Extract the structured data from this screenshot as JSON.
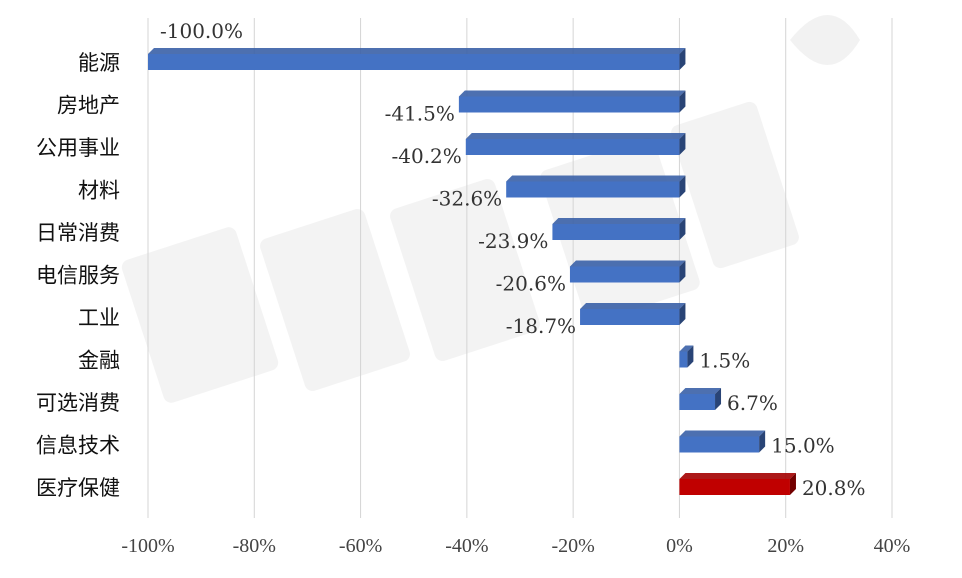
{
  "chart_data": {
    "type": "bar",
    "orientation": "horizontal",
    "title": "",
    "xlabel": "",
    "ylabel": "",
    "categories": [
      "能源",
      "房地产",
      "公用事业",
      "材料",
      "日常消费",
      "电信服务",
      "工业",
      "金融",
      "可选消费",
      "信息技术",
      "医疗保健"
    ],
    "values": [
      -100.0,
      -41.5,
      -40.2,
      -32.6,
      -23.9,
      -20.6,
      -18.7,
      1.5,
      6.7,
      15.0,
      20.8
    ],
    "value_labels": [
      "-100.0%",
      "-41.5%",
      "-40.2%",
      "-32.6%",
      "-23.9%",
      "-20.6%",
      "-18.7%",
      "1.5%",
      "6.7%",
      "15.0%",
      "20.8%"
    ],
    "xlim": [
      -100,
      40
    ],
    "x_ticks": [
      -100,
      -80,
      -60,
      -40,
      -20,
      0,
      20,
      40
    ],
    "x_tick_labels": [
      "-100%",
      "-80%",
      "-60%",
      "-40%",
      "-20%",
      "0%",
      "20%",
      "40%"
    ],
    "grid": true,
    "legend": "none",
    "colors": {
      "default_bar": "#4472C4",
      "highlight_bar": "#C00000",
      "highlight_category": "医疗保健"
    }
  }
}
